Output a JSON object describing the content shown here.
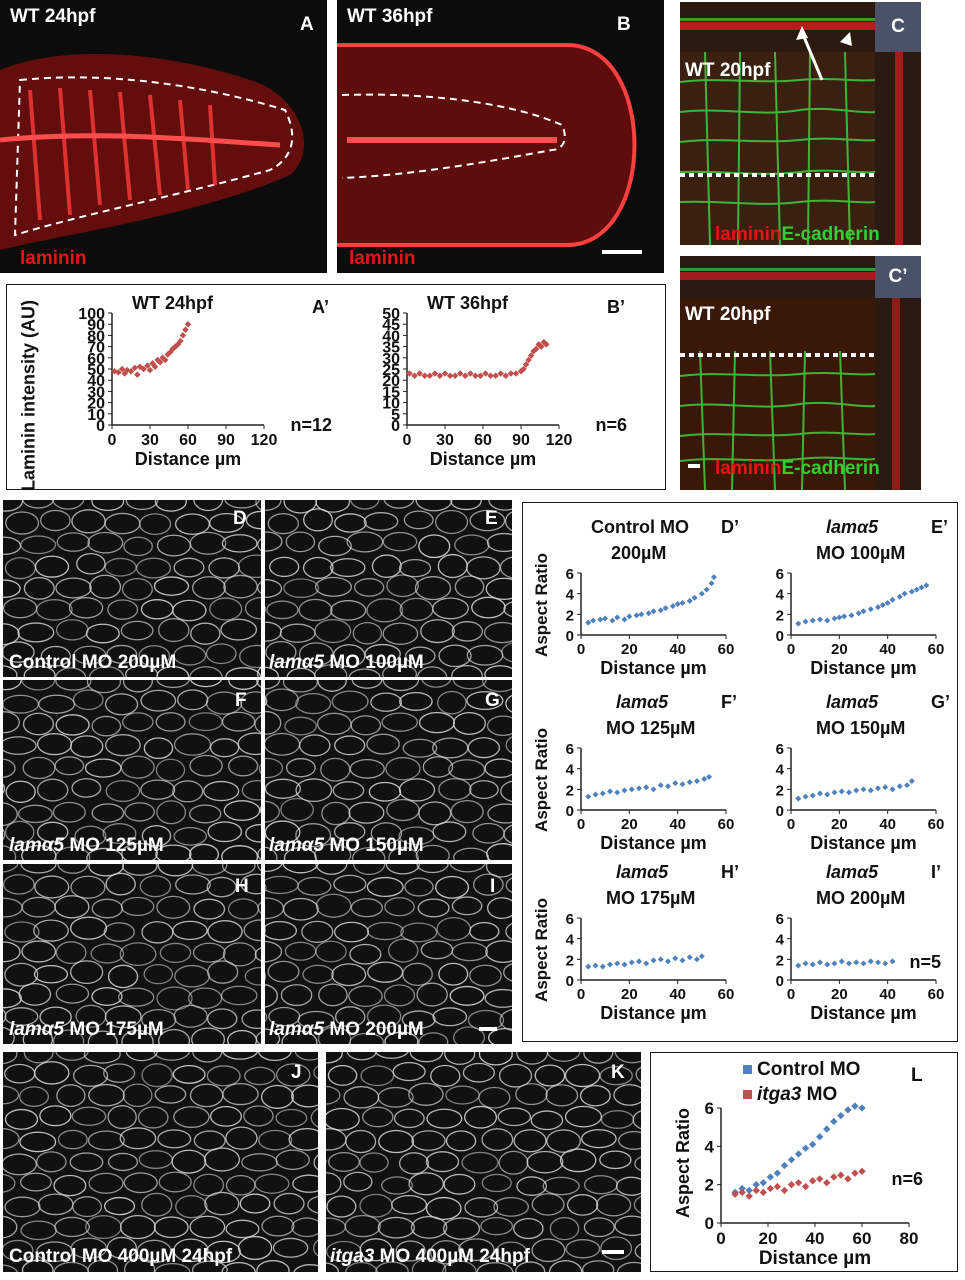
{
  "top": {
    "A": {
      "title": "WT 24hpf",
      "letter": "A",
      "stain": "laminin"
    },
    "B": {
      "title": "WT 36hpf",
      "letter": "B",
      "stain": "laminin"
    },
    "C": {
      "title": "WT 20hpf",
      "letter": "C",
      "stain_red": "laminin",
      "stain_green": "E-cadherin"
    },
    "C2": {
      "title": "WT 20hpf",
      "letter": "C’",
      "stain_red": "laminin",
      "stain_green": "E-cadherin"
    }
  },
  "grey_panels": {
    "D": {
      "letter": "D",
      "label_pre": "",
      "label_gene": "",
      "label_post": "Control MO 200µM"
    },
    "E": {
      "letter": "E",
      "label_pre": "",
      "label_gene": "lamα5",
      "label_post": " MO 100µM"
    },
    "F": {
      "letter": "F",
      "label_pre": "",
      "label_gene": "lamα5",
      "label_post": " MO 125µM"
    },
    "G": {
      "letter": "G",
      "label_pre": "",
      "label_gene": "lamα5",
      "label_post": " MO 150µM"
    },
    "H": {
      "letter": "H",
      "label_pre": "",
      "label_gene": "lamα5",
      "label_post": " MO 175µM"
    },
    "I": {
      "letter": "I",
      "label_pre": "",
      "label_gene": "lamα5",
      "label_post": " MO 200µM"
    },
    "J": {
      "letter": "J",
      "label_pre": "",
      "label_gene": "",
      "label_post": "Control MO 400µM 24hpf"
    },
    "K": {
      "letter": "K",
      "label_pre": "",
      "label_gene": "itga3",
      "label_post": " MO 400µM 24hpf"
    }
  },
  "laminin_plots": {
    "ylabel": "Laminin intensity (AU)",
    "xlabel": "Distance µm"
  },
  "aspect_plots": {
    "ylabel": "Aspect Ratio",
    "xlabel": "Distance µm"
  },
  "chart_data": [
    {
      "id": "A'",
      "type": "scatter",
      "title": "WT 24hpf",
      "letter": "A’",
      "annotation": "n=12",
      "xlabel": "Distance µm",
      "ylabel": "Laminin intensity (AU)",
      "xlim": [
        0,
        120
      ],
      "ylim": [
        0,
        100
      ],
      "xticks": [
        0,
        30,
        60,
        90,
        120
      ],
      "yticks": [
        0,
        10,
        20,
        30,
        40,
        50,
        60,
        70,
        80,
        90,
        100
      ],
      "color": "#c0504d",
      "series": [
        {
          "x": [
            2,
            5,
            8,
            10,
            12,
            15,
            18,
            20,
            22,
            25,
            28,
            30,
            32,
            34,
            36,
            38,
            40,
            42,
            44,
            46,
            48,
            50,
            52,
            54,
            56,
            58,
            60
          ],
          "y": [
            48,
            47,
            50,
            46,
            49,
            48,
            51,
            45,
            52,
            50,
            53,
            49,
            55,
            52,
            58,
            56,
            60,
            58,
            63,
            65,
            68,
            70,
            72,
            75,
            80,
            85,
            90
          ]
        }
      ]
    },
    {
      "id": "B'",
      "type": "scatter",
      "title": "WT 36hpf",
      "letter": "B’",
      "annotation": "n=6",
      "xlabel": "Distance µm",
      "ylabel": "",
      "xlim": [
        0,
        120
      ],
      "ylim": [
        0,
        50
      ],
      "xticks": [
        0,
        30,
        60,
        90,
        120
      ],
      "yticks": [
        0,
        5,
        10,
        15,
        20,
        25,
        30,
        35,
        40,
        45,
        50
      ],
      "color": "#c0504d",
      "series": [
        {
          "x": [
            2,
            6,
            10,
            14,
            18,
            22,
            26,
            30,
            34,
            38,
            42,
            46,
            50,
            54,
            58,
            62,
            66,
            70,
            74,
            78,
            82,
            86,
            90,
            92,
            94,
            96,
            98,
            100,
            102,
            104,
            106,
            108,
            110
          ],
          "y": [
            23,
            22,
            23,
            22,
            22,
            23,
            22,
            23,
            22,
            22,
            23,
            22,
            23,
            22,
            22,
            23,
            22,
            22,
            23,
            22,
            23,
            23,
            24,
            25,
            27,
            29,
            31,
            33,
            34,
            36,
            35,
            37,
            36
          ]
        }
      ]
    },
    {
      "id": "D'",
      "type": "scatter",
      "title_line1": "Control MO",
      "title_gene": "",
      "title_line2": "200µM",
      "letter": "D’",
      "annotation": "",
      "xlabel": "Distance µm",
      "ylabel": "Aspect Ratio",
      "xlim": [
        0,
        60
      ],
      "ylim": [
        0,
        6
      ],
      "xticks": [
        0,
        20,
        40,
        60
      ],
      "yticks": [
        0,
        2,
        4,
        6
      ],
      "color": "#4f81bd",
      "series": [
        {
          "x": [
            3,
            5,
            8,
            10,
            13,
            15,
            18,
            20,
            23,
            25,
            28,
            30,
            33,
            35,
            38,
            40,
            42,
            45,
            47,
            50,
            52,
            54,
            55
          ],
          "y": [
            1.2,
            1.4,
            1.5,
            1.6,
            1.4,
            1.7,
            1.5,
            1.8,
            1.9,
            2.0,
            2.1,
            2.3,
            2.4,
            2.6,
            2.8,
            3.0,
            3.1,
            3.3,
            3.6,
            4.0,
            4.4,
            5.0,
            5.6
          ]
        }
      ]
    },
    {
      "id": "E'",
      "type": "scatter",
      "title_line1": "",
      "title_gene": "lamα5",
      "title_line2": "MO 100µM",
      "letter": "E’",
      "annotation": "",
      "xlabel": "Distance µm",
      "ylabel": "",
      "xlim": [
        0,
        60
      ],
      "ylim": [
        0,
        6
      ],
      "xticks": [
        0,
        20,
        40,
        60
      ],
      "yticks": [
        0,
        2,
        4,
        6
      ],
      "color": "#4f81bd",
      "series": [
        {
          "x": [
            3,
            6,
            9,
            12,
            15,
            18,
            20,
            22,
            25,
            28,
            30,
            33,
            36,
            38,
            40,
            42,
            45,
            47,
            50,
            52,
            54,
            56
          ],
          "y": [
            1.1,
            1.3,
            1.4,
            1.5,
            1.4,
            1.6,
            1.7,
            1.8,
            1.9,
            2.1,
            2.3,
            2.5,
            2.7,
            2.9,
            3.1,
            3.4,
            3.7,
            4.0,
            4.2,
            4.4,
            4.6,
            4.8
          ]
        }
      ]
    },
    {
      "id": "F'",
      "type": "scatter",
      "title_line1": "",
      "title_gene": "lamα5",
      "title_line2": "MO 125µM",
      "letter": "F’",
      "annotation": "",
      "xlabel": "Distance µm",
      "ylabel": "Aspect Ratio",
      "xlim": [
        0,
        60
      ],
      "ylim": [
        0,
        6
      ],
      "xticks": [
        0,
        20,
        40,
        60
      ],
      "yticks": [
        0,
        2,
        4,
        6
      ],
      "color": "#4f81bd",
      "series": [
        {
          "x": [
            3,
            6,
            9,
            12,
            15,
            18,
            21,
            24,
            27,
            30,
            33,
            36,
            39,
            42,
            45,
            48,
            51,
            53
          ],
          "y": [
            1.3,
            1.5,
            1.6,
            1.8,
            1.7,
            1.9,
            2.0,
            2.1,
            2.2,
            2.0,
            2.4,
            2.3,
            2.6,
            2.5,
            2.7,
            2.8,
            3.0,
            3.2
          ]
        }
      ]
    },
    {
      "id": "G'",
      "type": "scatter",
      "title_line1": "",
      "title_gene": "lamα5",
      "title_line2": "MO 150µM",
      "letter": "G’",
      "annotation": "",
      "xlabel": "Distance µm",
      "ylabel": "",
      "xlim": [
        0,
        60
      ],
      "ylim": [
        0,
        6
      ],
      "xticks": [
        0,
        20,
        40,
        60
      ],
      "yticks": [
        0,
        2,
        4,
        6
      ],
      "color": "#4f81bd",
      "series": [
        {
          "x": [
            3,
            6,
            9,
            12,
            15,
            18,
            21,
            24,
            27,
            30,
            33,
            36,
            39,
            42,
            45,
            48,
            50
          ],
          "y": [
            1.1,
            1.3,
            1.4,
            1.6,
            1.5,
            1.7,
            1.8,
            1.7,
            1.9,
            2.0,
            1.9,
            2.1,
            2.2,
            2.0,
            2.3,
            2.4,
            2.8
          ]
        }
      ]
    },
    {
      "id": "H'",
      "type": "scatter",
      "title_line1": "",
      "title_gene": "lamα5",
      "title_line2": "MO 175µM",
      "letter": "H’",
      "annotation": "",
      "xlabel": "Distance µm",
      "ylabel": "Aspect Ratio",
      "xlim": [
        0,
        60
      ],
      "ylim": [
        0,
        6
      ],
      "xticks": [
        0,
        20,
        40,
        60
      ],
      "yticks": [
        0,
        2,
        4,
        6
      ],
      "color": "#4f81bd",
      "series": [
        {
          "x": [
            3,
            6,
            9,
            12,
            15,
            18,
            21,
            24,
            27,
            30,
            33,
            36,
            39,
            42,
            45,
            48,
            50
          ],
          "y": [
            1.3,
            1.4,
            1.3,
            1.5,
            1.6,
            1.5,
            1.7,
            1.8,
            1.6,
            1.9,
            2.0,
            1.8,
            2.1,
            1.9,
            2.2,
            2.0,
            2.3
          ]
        }
      ]
    },
    {
      "id": "I'",
      "type": "scatter",
      "title_line1": "",
      "title_gene": "lamα5",
      "title_line2": "MO 200µM",
      "letter": "I’",
      "annotation": "n=5",
      "xlabel": "Distance µm",
      "ylabel": "",
      "xlim": [
        0,
        60
      ],
      "ylim": [
        0,
        6
      ],
      "xticks": [
        0,
        20,
        40,
        60
      ],
      "yticks": [
        0,
        2,
        4,
        6
      ],
      "color": "#4f81bd",
      "series": [
        {
          "x": [
            3,
            6,
            9,
            12,
            15,
            18,
            21,
            24,
            27,
            30,
            33,
            36,
            39,
            42
          ],
          "y": [
            1.4,
            1.6,
            1.5,
            1.7,
            1.5,
            1.6,
            1.8,
            1.6,
            1.7,
            1.6,
            1.8,
            1.7,
            1.6,
            1.8
          ]
        }
      ]
    },
    {
      "id": "L",
      "type": "scatter",
      "letter": "L",
      "annotation": "n=6",
      "xlabel": "Distance µm",
      "ylabel": "Aspect Ratio",
      "xlim": [
        0,
        80
      ],
      "ylim": [
        0,
        6
      ],
      "xticks": [
        0,
        20,
        40,
        60,
        80
      ],
      "yticks": [
        0,
        2,
        4,
        6
      ],
      "legend_position": "top",
      "series": [
        {
          "name": "Control MO",
          "gene": "",
          "color": "#4f81bd",
          "x": [
            6,
            9,
            12,
            15,
            18,
            21,
            24,
            27,
            30,
            33,
            36,
            39,
            42,
            45,
            48,
            51,
            54,
            57,
            60
          ],
          "y": [
            1.6,
            1.8,
            1.7,
            2.0,
            2.1,
            2.4,
            2.6,
            3.0,
            3.3,
            3.6,
            3.9,
            4.1,
            4.5,
            4.9,
            5.3,
            5.6,
            5.9,
            6.1,
            6.0
          ]
        },
        {
          "name": " MO",
          "gene": "itga3",
          "color": "#c0504d",
          "x": [
            6,
            9,
            12,
            15,
            18,
            21,
            24,
            27,
            30,
            33,
            36,
            39,
            42,
            45,
            48,
            51,
            54,
            57,
            60
          ],
          "y": [
            1.5,
            1.6,
            1.4,
            1.7,
            1.6,
            1.8,
            1.9,
            1.7,
            2.0,
            2.1,
            1.9,
            2.2,
            2.3,
            2.1,
            2.4,
            2.5,
            2.3,
            2.6,
            2.7
          ]
        }
      ]
    }
  ]
}
